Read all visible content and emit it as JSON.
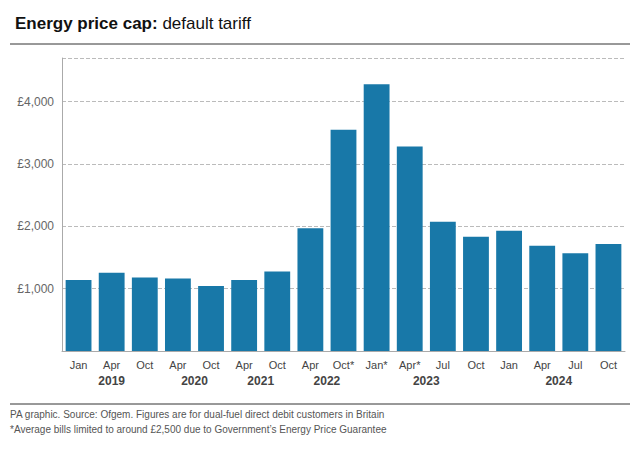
{
  "chart_data": {
    "type": "bar",
    "title": "Energy price cap: default tariff",
    "categories": [
      "Jan",
      "Apr",
      "Oct",
      "Apr",
      "Oct",
      "Apr",
      "Oct",
      "Apr",
      "Oct*",
      "Jan*",
      "Apr*",
      "Jul",
      "Oct",
      "Jan",
      "Apr",
      "Jul",
      "Oct"
    ],
    "group_labels": [
      "2019",
      "2019",
      "2019",
      "2020",
      "2020",
      "2021",
      "2021",
      "2022",
      "2022",
      "2023",
      "2023",
      "2023",
      "2023",
      "2024",
      "2024",
      "2024",
      "2024"
    ],
    "values": [
      1138,
      1254,
      1179,
      1162,
      1042,
      1138,
      1277,
      1971,
      3549,
      4279,
      3280,
      2074,
      1834,
      1928,
      1690,
      1568,
      1717
    ],
    "color": "#1878a8",
    "ylim": [
      0,
      4700
    ],
    "yticks": [
      {
        "value": 1000,
        "label": "£1,000"
      },
      {
        "value": 2000,
        "label": "£2,000"
      },
      {
        "value": 3000,
        "label": "£3,000"
      },
      {
        "value": 4000,
        "label": "£4,000"
      }
    ],
    "grid": true,
    "annotations": [
      "PA graphic. Source: Ofgem. Figures are for dual-fuel direct debit customers in Britain",
      "*Average bills limited to around £2,500 due to Government’s Energy Price Guarantee"
    ]
  }
}
